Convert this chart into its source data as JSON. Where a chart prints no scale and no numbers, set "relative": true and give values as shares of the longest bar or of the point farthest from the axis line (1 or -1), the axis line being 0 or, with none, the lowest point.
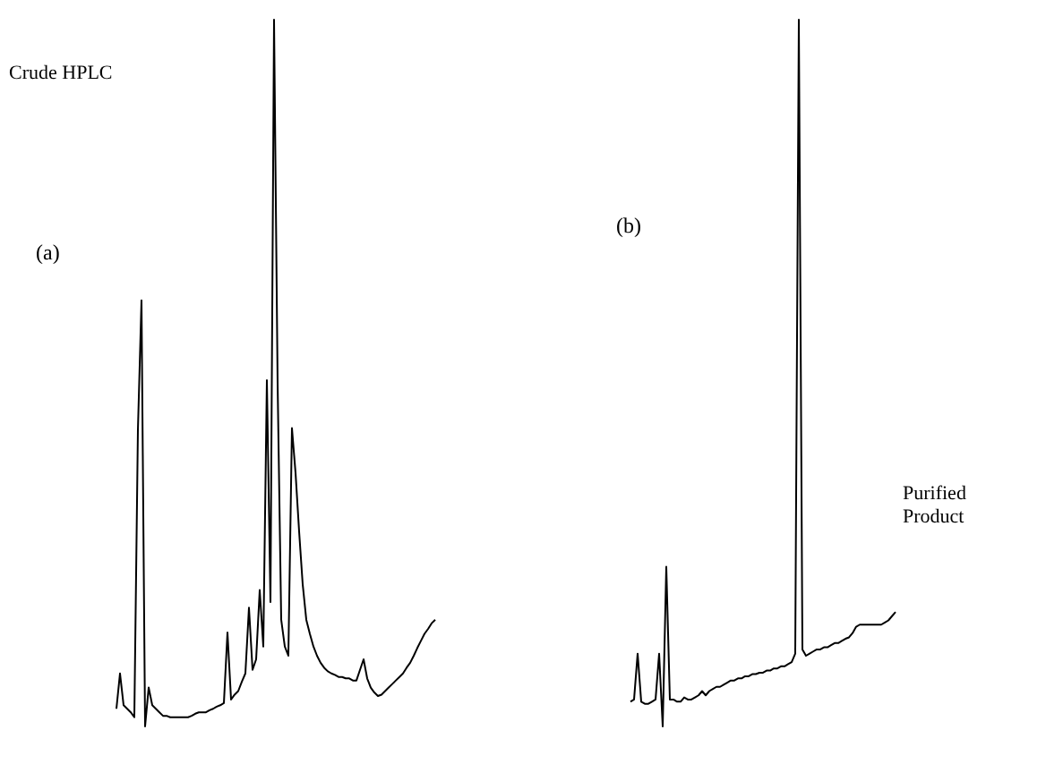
{
  "chart_data": [
    {
      "type": "line",
      "title": "(a)",
      "annotations": [
        "Crude HPLC"
      ],
      "relative": true,
      "categories": [
        null,
        null,
        null,
        null,
        null,
        null,
        null,
        null,
        null,
        null,
        null,
        null,
        null,
        null,
        null,
        null,
        null,
        null,
        null,
        null,
        null,
        null,
        null,
        null,
        null,
        null,
        null,
        null,
        null,
        null,
        null,
        null,
        null,
        null,
        null,
        null,
        null,
        null,
        null,
        null,
        null,
        null,
        null,
        null,
        null,
        null,
        null,
        null,
        null,
        null,
        null,
        null,
        null,
        null,
        null,
        null,
        null,
        null,
        null,
        null,
        null,
        null,
        null,
        null,
        null,
        null,
        null,
        null,
        null,
        null,
        null,
        null,
        null,
        null,
        null,
        null,
        null,
        null,
        null,
        null,
        null,
        null,
        null,
        null,
        null,
        null,
        null,
        null,
        null,
        null
      ],
      "series": [
        {
          "color": "#000000",
          "values": [
            0.025,
            0.075,
            0.03,
            0.025,
            0.02,
            0.013,
            0.42,
            0.603,
            0,
            0.055,
            0.03,
            0.025,
            0.02,
            0.015,
            0.015,
            0.013,
            0.013,
            0.013,
            0.013,
            0.013,
            0.013,
            0.015,
            0.018,
            0.02,
            0.02,
            0.02,
            0.023,
            0.025,
            0.028,
            0.03,
            0.033,
            0.133,
            0.038,
            0.045,
            0.05,
            0.063,
            0.075,
            0.168,
            0.08,
            0.095,
            0.193,
            0.113,
            0.49,
            0.176,
            1,
            0.485,
            0.151,
            0.113,
            0.1,
            0.422,
            0.359,
            0.276,
            0.201,
            0.151,
            0.131,
            0.113,
            0.1,
            0.09,
            0.083,
            0.078,
            0.075,
            0.073,
            0.07,
            0.07,
            0.068,
            0.068,
            0.065,
            0.065,
            0.08,
            0.095,
            0.068,
            0.055,
            0.048,
            0.043,
            0.045,
            0.05,
            0.055,
            0.06,
            0.065,
            0.07,
            0.075,
            0.083,
            0.09,
            0.1,
            0.111,
            0.121,
            0.131,
            0.138,
            0.146,
            0.151
          ]
        }
      ]
    },
    {
      "type": "line",
      "title": "(b)",
      "annotations": [
        "Purified\nProduct"
      ],
      "relative": true,
      "categories": [
        null,
        null,
        null,
        null,
        null,
        null,
        null,
        null,
        null,
        null,
        null,
        null,
        null,
        null,
        null,
        null,
        null,
        null,
        null,
        null,
        null,
        null,
        null,
        null,
        null,
        null,
        null,
        null,
        null,
        null,
        null,
        null,
        null,
        null,
        null,
        null,
        null,
        null,
        null,
        null,
        null,
        null,
        null,
        null,
        null,
        null,
        null,
        null,
        null,
        null,
        null,
        null,
        null,
        null,
        null,
        null,
        null,
        null,
        null,
        null,
        null,
        null,
        null,
        null,
        null,
        null,
        null,
        null,
        null,
        null,
        null,
        null,
        null,
        null,
        null
      ],
      "series": [
        {
          "color": "#000000",
          "values": [
            0.035,
            0.038,
            0.103,
            0.035,
            0.032,
            0.032,
            0.035,
            0.038,
            0.103,
            0,
            0.226,
            0.038,
            0.038,
            0.035,
            0.035,
            0.041,
            0.038,
            0.038,
            0.041,
            0.044,
            0.05,
            0.044,
            0.05,
            0.053,
            0.056,
            0.056,
            0.059,
            0.062,
            0.065,
            0.065,
            0.068,
            0.068,
            0.071,
            0.071,
            0.074,
            0.074,
            0.076,
            0.076,
            0.079,
            0.079,
            0.082,
            0.082,
            0.085,
            0.085,
            0.088,
            0.091,
            0.103,
            1,
            0.109,
            0.1,
            0.103,
            0.106,
            0.109,
            0.109,
            0.112,
            0.112,
            0.115,
            0.118,
            0.118,
            0.121,
            0.124,
            0.126,
            0.132,
            0.141,
            0.144,
            0.144,
            0.144,
            0.144,
            0.144,
            0.144,
            0.144,
            0.147,
            0.15,
            0.156,
            0.162
          ]
        }
      ]
    }
  ]
}
